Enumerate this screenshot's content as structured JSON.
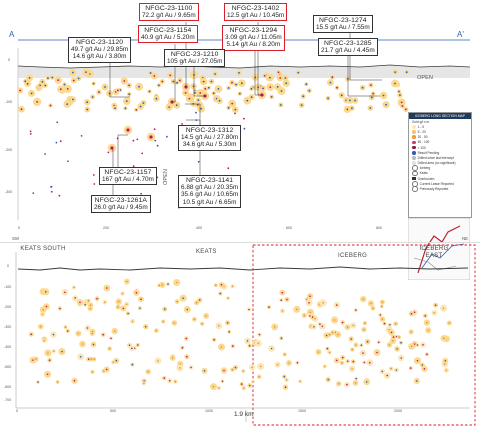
{
  "section_labels": {
    "start": "A",
    "end": "A'"
  },
  "open_labels": [
    "OPEN",
    "OPEN"
  ],
  "top_y_ticks": [
    "0",
    "-100",
    "-200",
    "-300"
  ],
  "top_x_ticks": [
    "0",
    "200",
    "400",
    "600",
    "800",
    "1000"
  ],
  "callouts": [
    {
      "hole": "NFGC-23-1100",
      "lines": [
        "72.2 g/t Au / 9.65m"
      ],
      "highlight": true
    },
    {
      "hole": "NFGC-23-1402",
      "lines": [
        "12.5 g/t Au / 10.45m"
      ],
      "highlight": true
    },
    {
      "hole": "NFGC-23-1274",
      "lines": [
        "15.5 g/t Au / 7.55m"
      ],
      "highlight": false
    },
    {
      "hole": "NFGC-23-1120",
      "lines": [
        "49.7 g/t Au / 29.85m",
        "14.6 g/t Au / 3.80m"
      ],
      "highlight": false
    },
    {
      "hole": "NFGC-23-1154",
      "lines": [
        "40.9 g/t Au / 5.20m"
      ],
      "highlight": true
    },
    {
      "hole": "NFGC-23-1294",
      "lines": [
        "3.09 g/t Au / 11.05m",
        "5.14 g/t Au / 8.20m"
      ],
      "highlight": true
    },
    {
      "hole": "NFGC-23-1285",
      "lines": [
        "21.7 g/t Au / 4.45m"
      ],
      "highlight": false
    },
    {
      "hole": "NFGC-23-1210",
      "lines": [
        "105 g/t Au / 27.05m"
      ],
      "highlight": false
    },
    {
      "hole": "NFGC-23-1312",
      "lines": [
        "14.5 g/t Au / 27.80m",
        "34.6 g/t Au / 5.30m"
      ],
      "highlight": false
    },
    {
      "hole": "NFGC-23-1141",
      "lines": [
        "6.88 g/t Au / 20.35m",
        "35.6 g/t Au / 10.65m",
        "10.5 g/t Au / 6.65m"
      ],
      "highlight": false
    },
    {
      "hole": "NFGC-23-1157",
      "lines": [
        "167 g/t Au / 4.70m"
      ],
      "highlight": false
    },
    {
      "hole": "NFGC-23-1261A",
      "lines": [
        "26.0 g/t Au / 9.45m"
      ],
      "highlight": false
    }
  ],
  "legend": {
    "title": "ICEBERG LONG SECTION MAP",
    "entries": [
      "Gold g/t x m",
      "1 - 5",
      "5 - 20",
      "20 - 50",
      "50 - 100",
      "> 100",
      "Result Pending",
      "Drilled since last intercept",
      "Drilled area (no significant)",
      "Iceberg",
      "Keats",
      "Overburden",
      "Current Lease Reported",
      "Previously Reported"
    ]
  },
  "bottom": {
    "corner_left": "SW",
    "corner_right": "NE",
    "zone_labels": [
      "KEATS SOUTH",
      "KEATS",
      "ICEBERG",
      "ICEBERG EAST"
    ],
    "distance_label": "1.9 km",
    "y_ticks": [
      "0",
      "-100",
      "-200",
      "-300",
      "-400",
      "-500",
      "-600",
      "-700"
    ],
    "x_ticks": [
      "0",
      "500",
      "1000",
      "1500",
      "2000"
    ]
  },
  "colors": {
    "highlight": "#d81f2a",
    "bubble": "#f7c66b",
    "high_grade": "#c2185b",
    "blue_pt": "#2f5fb3",
    "surface": "#3a3a3a"
  }
}
